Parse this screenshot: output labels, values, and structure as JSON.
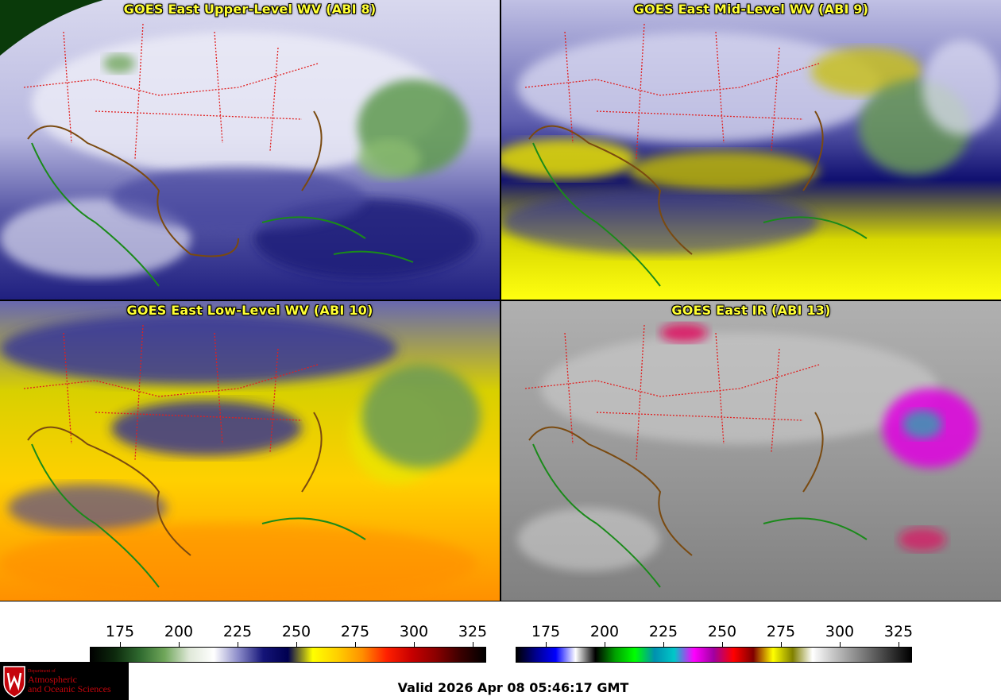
{
  "panels": [
    {
      "id": "p1",
      "title": "GOES East Upper-Level WV (ABI 8)",
      "scheme": "wv-upper"
    },
    {
      "id": "p2",
      "title": "GOES East Mid-Level WV (ABI 9)",
      "scheme": "wv-mid"
    },
    {
      "id": "p3",
      "title": "GOES East Low-Level WV (ABI 10)",
      "scheme": "wv-low"
    },
    {
      "id": "p4",
      "title": "GOES East IR (ABI 13)",
      "scheme": "ir"
    }
  ],
  "colorbars": {
    "wv": {
      "ticks": [
        "175",
        "200",
        "225",
        "250",
        "275",
        "300",
        "325"
      ],
      "stops": [
        "#000000",
        "#0d2a0d",
        "#2f6a2f",
        "#6fa65a",
        "#dfe8d8",
        "#ffffff",
        "#8a8ac8",
        "#141478",
        "#000050",
        "#ffff00",
        "#ffd000",
        "#ff9000",
        "#ff2000",
        "#c80000",
        "#8a0000",
        "#3a0000",
        "#000000"
      ]
    },
    "ir": {
      "ticks": [
        "175",
        "200",
        "225",
        "250",
        "275",
        "300",
        "325"
      ],
      "stops": [
        "#000000",
        "#000090",
        "#0000ff",
        "#ffffff",
        "#000000",
        "#00a000",
        "#00ff00",
        "#0090b0",
        "#00c8c8",
        "#ff00ff",
        "#a000a0",
        "#ff0000",
        "#800000",
        "#ffff00",
        "#808000",
        "#ffffff",
        "#c8c8c8",
        "#969696",
        "#646464",
        "#323232",
        "#000000"
      ]
    }
  },
  "logo": {
    "dept": "Department of",
    "line1": "Atmospheric",
    "line2": "and Oceanic Sciences"
  },
  "valid_time": "Valid 2026 Apr 08 05:46:17 GMT"
}
